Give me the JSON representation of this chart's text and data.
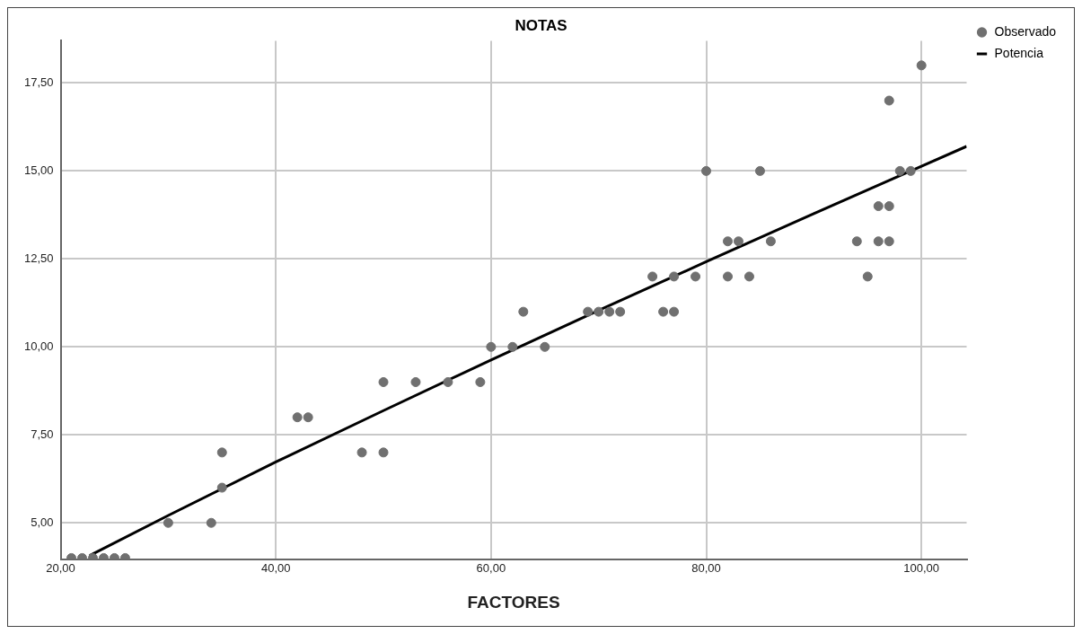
{
  "chart_data": {
    "type": "scatter",
    "title": "NOTAS",
    "xlabel": "FACTORES",
    "xlim": [
      20,
      104.2
    ],
    "ylim": [
      3.97,
      18.7
    ],
    "xticks": [
      {
        "value": 20,
        "label": "20,00"
      },
      {
        "value": 40,
        "label": "40,00"
      },
      {
        "value": 60,
        "label": "60,00"
      },
      {
        "value": 80,
        "label": "80,00"
      },
      {
        "value": 100,
        "label": "100,00"
      }
    ],
    "yticks": [
      {
        "value": 5,
        "label": "5,00"
      },
      {
        "value": 7.5,
        "label": "7,50"
      },
      {
        "value": 10,
        "label": "10,00"
      },
      {
        "value": 12.5,
        "label": "12,50"
      },
      {
        "value": 15,
        "label": "15,00"
      },
      {
        "value": 17.5,
        "label": "17,50"
      }
    ],
    "grid": true,
    "legend": "top right",
    "marker": "circle",
    "series": [
      {
        "name": "Observado",
        "type": "scatter",
        "color": "#707070",
        "x": [
          21,
          22,
          23,
          24,
          25,
          26,
          30,
          34,
          35,
          35,
          42,
          43,
          48,
          50,
          50,
          53,
          56,
          59,
          60,
          62,
          65,
          63,
          69,
          70,
          71,
          72,
          76,
          77,
          75,
          77,
          79,
          82,
          84,
          95,
          82,
          83,
          86,
          94,
          96,
          97,
          96,
          97,
          80,
          85,
          98,
          99,
          97,
          100
        ],
        "values": [
          4,
          4,
          4,
          4,
          4,
          4,
          5,
          5,
          6,
          7,
          8,
          8,
          7,
          7,
          9,
          9,
          9,
          9,
          10,
          10,
          10,
          11,
          11,
          11,
          11,
          11,
          11,
          11,
          12,
          12,
          12,
          12,
          12,
          12,
          13,
          13,
          13,
          13,
          13,
          13,
          14,
          14,
          15,
          15,
          15,
          15,
          17,
          18
        ]
      },
      {
        "name": "Potencia",
        "type": "line",
        "color": "#000000",
        "marker": "none",
        "x": [
          22.7,
          30,
          40,
          50,
          60,
          70,
          80,
          90,
          104.2
        ],
        "values": [
          4.07,
          5.21,
          6.73,
          8.19,
          9.63,
          11.04,
          12.42,
          13.79,
          15.7
        ]
      }
    ]
  }
}
